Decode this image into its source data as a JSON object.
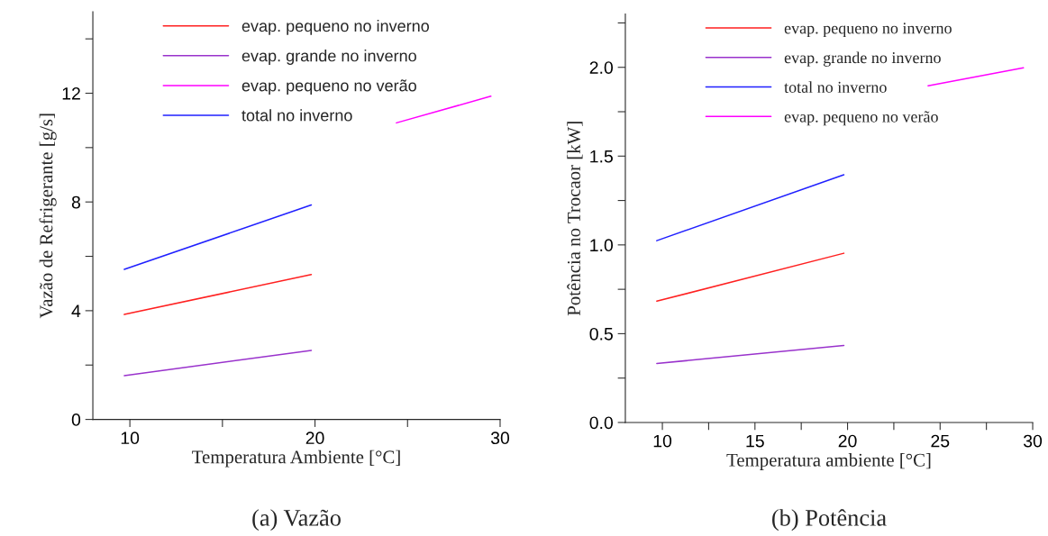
{
  "chart_data": [
    {
      "type": "line",
      "title": "(a) Vazão",
      "xlabel": "Temperatura Ambiente [°C]",
      "ylabel": "Vazão de Refrigerante [g/s]",
      "xlim": [
        8,
        30
      ],
      "ylim": [
        0,
        15
      ],
      "xticks": [
        10,
        {
          "value": 15,
          "label": null
        },
        20,
        {
          "value": 25,
          "label": null
        },
        30
      ],
      "yticks": [
        0,
        {
          "value": 2,
          "label": null
        },
        4,
        {
          "value": 6,
          "label": null
        },
        8,
        {
          "value": 10,
          "label": null
        },
        12,
        {
          "value": 14,
          "label": null
        }
      ],
      "legend": "top",
      "series": [
        {
          "name": "evap. pequeno no inverno",
          "color": "#ff2020",
          "x": [
            9.7,
            19.8
          ],
          "values": [
            3.86,
            5.33
          ]
        },
        {
          "name": "evap. grande no inverno",
          "color": "#9932cc",
          "x": [
            9.7,
            19.8
          ],
          "values": [
            1.61,
            2.54
          ]
        },
        {
          "name": "evap. pequeno no verão",
          "color": "#ff00ff",
          "x": [
            24.4,
            29.5
          ],
          "values": [
            10.91,
            11.89
          ]
        },
        {
          "name": "total no inverno",
          "color": "#2020ff",
          "x": [
            9.7,
            19.8
          ],
          "values": [
            5.52,
            7.89
          ]
        }
      ]
    },
    {
      "type": "line",
      "title": "(b) Potência",
      "xlabel": "Temperatura ambiente [°C]",
      "ylabel": "Potência no Trocaor [kW]",
      "xlim": [
        8,
        30
      ],
      "ylim": [
        0,
        2.3
      ],
      "xticks": [
        10,
        {
          "value": 12.5,
          "label": null
        },
        15,
        {
          "value": 17.5,
          "label": null
        },
        20,
        {
          "value": 22.5,
          "label": null
        },
        25,
        {
          "value": 27.5,
          "label": null
        },
        30
      ],
      "yticks": [
        {
          "value": 0,
          "label": "0.0"
        },
        {
          "value": 0.25,
          "label": null
        },
        0.5,
        {
          "value": 0.75,
          "label": null
        },
        {
          "value": 1,
          "label": "1.0"
        },
        {
          "value": 1.25,
          "label": null
        },
        1.5,
        {
          "value": 1.75,
          "label": null
        },
        {
          "value": 2,
          "label": "2.0"
        },
        {
          "value": 2.25,
          "label": null
        }
      ],
      "legend": "top",
      "series": [
        {
          "name": "evap. pequeno no inverno",
          "color": "#ff2020",
          "x": [
            9.7,
            19.8
          ],
          "values": [
            0.683,
            0.953
          ]
        },
        {
          "name": "evap. grande no inverno",
          "color": "#9932cc",
          "x": [
            9.7,
            19.8
          ],
          "values": [
            0.332,
            0.434
          ]
        },
        {
          "name": "total no inverno",
          "color": "#2020ff",
          "x": [
            9.7,
            19.8
          ],
          "values": [
            1.024,
            1.395
          ]
        },
        {
          "name": "evap. pequeno no verão",
          "color": "#ff00ff",
          "x": [
            24.35,
            29.5
          ],
          "values": [
            1.896,
            1.997
          ]
        }
      ]
    }
  ]
}
